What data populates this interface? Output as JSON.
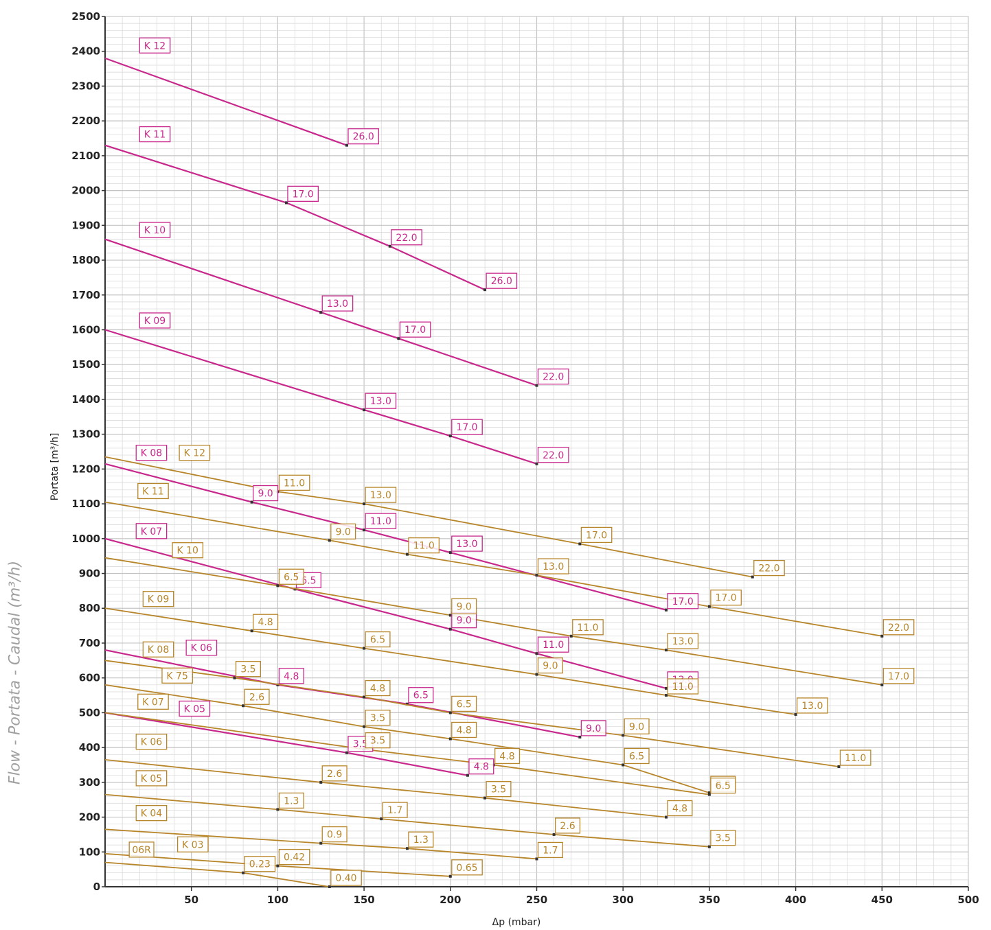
{
  "side_caption": "Flow - Portata - Caudal (m³/h)",
  "colors": {
    "magenta": "#c8288c",
    "gold": "#b8862a",
    "grid": "#d6d6d6",
    "grid_major": "#c4c4c4"
  },
  "chart_data": {
    "type": "line",
    "xlabel": "Δp (mbar)",
    "ylabel": "Portata [m³/h]",
    "xlim": [
      0,
      500
    ],
    "ylim": [
      0,
      2500
    ],
    "x_ticks": [
      "50",
      "100",
      "150",
      "200",
      "250",
      "300",
      "350",
      "400",
      "450",
      "500"
    ],
    "y_ticks": [
      "0",
      "100",
      "200",
      "300",
      "400",
      "500",
      "600",
      "700",
      "800",
      "900",
      "1000",
      "1100",
      "1200",
      "1300",
      "1400",
      "1500",
      "1600",
      "1700",
      "1800",
      "1900",
      "2000",
      "2100",
      "2200",
      "2300",
      "2400",
      "2500"
    ],
    "grid": true,
    "series": [
      {
        "name": "K 12",
        "color": "magenta",
        "start_y": 2380,
        "points": [
          [
            140,
            2130,
            "26.0"
          ]
        ]
      },
      {
        "name": "K 11",
        "color": "magenta",
        "start_y": 2130,
        "points": [
          [
            105,
            1965,
            "17.0"
          ],
          [
            165,
            1840,
            "22.0"
          ],
          [
            220,
            1715,
            "26.0"
          ]
        ]
      },
      {
        "name": "K 10",
        "color": "magenta",
        "start_y": 1860,
        "points": [
          [
            125,
            1650,
            "13.0"
          ],
          [
            170,
            1575,
            "17.0"
          ],
          [
            250,
            1440,
            "22.0"
          ]
        ]
      },
      {
        "name": "K 09",
        "color": "magenta",
        "start_y": 1600,
        "points": [
          [
            150,
            1370,
            "13.0"
          ],
          [
            200,
            1295,
            "17.0"
          ],
          [
            250,
            1215,
            "22.0"
          ]
        ]
      },
      {
        "name": "K 08",
        "color": "magenta",
        "start_y": 1215,
        "points": [
          [
            85,
            1105,
            "9.0"
          ],
          [
            150,
            1025,
            "11.0"
          ],
          [
            200,
            960,
            "13.0"
          ],
          [
            325,
            795,
            "17.0"
          ]
        ]
      },
      {
        "name": "K 07",
        "color": "magenta",
        "start_y": 1000,
        "points": [
          [
            110,
            855,
            "6.5"
          ],
          [
            200,
            740,
            "9.0"
          ],
          [
            250,
            670,
            "11.0"
          ],
          [
            325,
            570,
            "13.0"
          ]
        ]
      },
      {
        "name": "K 06",
        "color": "magenta",
        "start_y": 680,
        "points": [
          [
            100,
            580,
            "4.8"
          ],
          [
            175,
            525,
            "6.5"
          ],
          [
            275,
            430,
            "9.0"
          ]
        ]
      },
      {
        "name": "K 05",
        "color": "magenta",
        "start_y": 500,
        "points": [
          [
            140,
            385,
            "3.5"
          ],
          [
            210,
            320,
            "4.8"
          ]
        ]
      },
      {
        "name": "K 12",
        "color": "gold",
        "start_y": 1235,
        "points": [
          [
            100,
            1135,
            "11.0"
          ],
          [
            150,
            1100,
            "13.0"
          ],
          [
            275,
            985,
            "17.0"
          ],
          [
            375,
            890,
            "22.0"
          ]
        ]
      },
      {
        "name": "K 11",
        "color": "gold",
        "start_y": 1105,
        "points": [
          [
            130,
            995,
            "9.0"
          ],
          [
            175,
            955,
            "11.0"
          ],
          [
            250,
            895,
            "13.0"
          ],
          [
            350,
            805,
            "17.0"
          ],
          [
            450,
            720,
            "22.0"
          ]
        ]
      },
      {
        "name": "K 10",
        "color": "gold",
        "start_y": 945,
        "points": [
          [
            100,
            865,
            "6.5"
          ],
          [
            200,
            780,
            "9.0"
          ],
          [
            270,
            720,
            "11.0"
          ],
          [
            325,
            680,
            "13.0"
          ],
          [
            450,
            580,
            "17.0"
          ]
        ]
      },
      {
        "name": "K 09",
        "color": "gold",
        "start_y": 800,
        "points": [
          [
            85,
            735,
            "4.8"
          ],
          [
            150,
            685,
            "6.5"
          ],
          [
            250,
            610,
            "9.0"
          ],
          [
            325,
            550,
            "11.0"
          ],
          [
            400,
            495,
            "13.0"
          ]
        ]
      },
      {
        "name": "K 08",
        "color": "gold",
        "start_y": 650,
        "points": [
          [
            75,
            600,
            "3.5"
          ],
          [
            150,
            545,
            "4.8"
          ],
          [
            200,
            500,
            "6.5"
          ],
          [
            300,
            435,
            "9.0"
          ],
          [
            425,
            345,
            "11.0"
          ]
        ]
      },
      {
        "name": "K 75",
        "color": "gold",
        "start_y": 580,
        "points": [
          [
            80,
            520,
            "2.6"
          ],
          [
            150,
            460,
            "3.5"
          ],
          [
            200,
            425,
            "4.8"
          ],
          [
            300,
            350,
            "6.5"
          ],
          [
            350,
            270,
            "9.0"
          ]
        ]
      },
      {
        "name": "K 07",
        "color": "gold",
        "start_y": 500,
        "points": [
          [
            150,
            395,
            "3.5"
          ],
          [
            225,
            350,
            "4.8"
          ],
          [
            350,
            265,
            "6.5"
          ]
        ]
      },
      {
        "name": "K 06",
        "color": "gold",
        "start_y": 365,
        "points": [
          [
            125,
            300,
            "2.6"
          ],
          [
            220,
            255,
            "3.5"
          ],
          [
            325,
            200,
            "4.8"
          ]
        ]
      },
      {
        "name": "K 05",
        "color": "gold",
        "start_y": 265,
        "points": [
          [
            100,
            222,
            "1.3"
          ],
          [
            160,
            195,
            "1.7"
          ],
          [
            260,
            150,
            "2.6"
          ],
          [
            350,
            115,
            "3.5"
          ]
        ]
      },
      {
        "name": "K 04",
        "color": "gold",
        "start_y": 165,
        "points": [
          [
            125,
            125,
            "0.9"
          ],
          [
            175,
            110,
            "1.3"
          ],
          [
            250,
            80,
            "1.7"
          ]
        ]
      },
      {
        "name": "K 03",
        "color": "gold",
        "start_y": 95,
        "points": [
          [
            100,
            60,
            "0.42"
          ],
          [
            200,
            30,
            "0.65"
          ]
        ]
      },
      {
        "name": "06R",
        "color": "gold",
        "start_y": 70,
        "points": [
          [
            80,
            40,
            "0.23"
          ],
          [
            130,
            0,
            "0.40"
          ]
        ]
      }
    ],
    "annotations": [
      {
        "text": "K 12",
        "color": "magenta",
        "x": 20,
        "y": 2395
      },
      {
        "text": "K 11",
        "color": "magenta",
        "x": 20,
        "y": 2140
      },
      {
        "text": "K 10",
        "color": "magenta",
        "x": 20,
        "y": 1865
      },
      {
        "text": "K 09",
        "color": "magenta",
        "x": 20,
        "y": 1605
      },
      {
        "text": "K 08",
        "color": "magenta",
        "x": 18,
        "y": 1225
      },
      {
        "text": "K 07",
        "color": "magenta",
        "x": 18,
        "y": 1000
      },
      {
        "text": "K 06",
        "color": "magenta",
        "x": 47,
        "y": 665
      },
      {
        "text": "K 05",
        "color": "magenta",
        "x": 43,
        "y": 490
      },
      {
        "text": "K 12",
        "color": "gold",
        "x": 43,
        "y": 1225
      },
      {
        "text": "K 11",
        "color": "gold",
        "x": 19,
        "y": 1115
      },
      {
        "text": "K 10",
        "color": "gold",
        "x": 39,
        "y": 945
      },
      {
        "text": "K 09",
        "color": "gold",
        "x": 22,
        "y": 805
      },
      {
        "text": "K 08",
        "color": "gold",
        "x": 22,
        "y": 660
      },
      {
        "text": "K 75",
        "color": "gold",
        "x": 33,
        "y": 585
      },
      {
        "text": "K 07",
        "color": "gold",
        "x": 19,
        "y": 510
      },
      {
        "text": "K 06",
        "color": "gold",
        "x": 18,
        "y": 395
      },
      {
        "text": "K 05",
        "color": "gold",
        "x": 18,
        "y": 290
      },
      {
        "text": "K 04",
        "color": "gold",
        "x": 18,
        "y": 190
      },
      {
        "text": "K 03",
        "color": "gold",
        "x": 42,
        "y": 100
      },
      {
        "text": "06R",
        "color": "gold",
        "x": 14,
        "y": 85
      }
    ]
  }
}
